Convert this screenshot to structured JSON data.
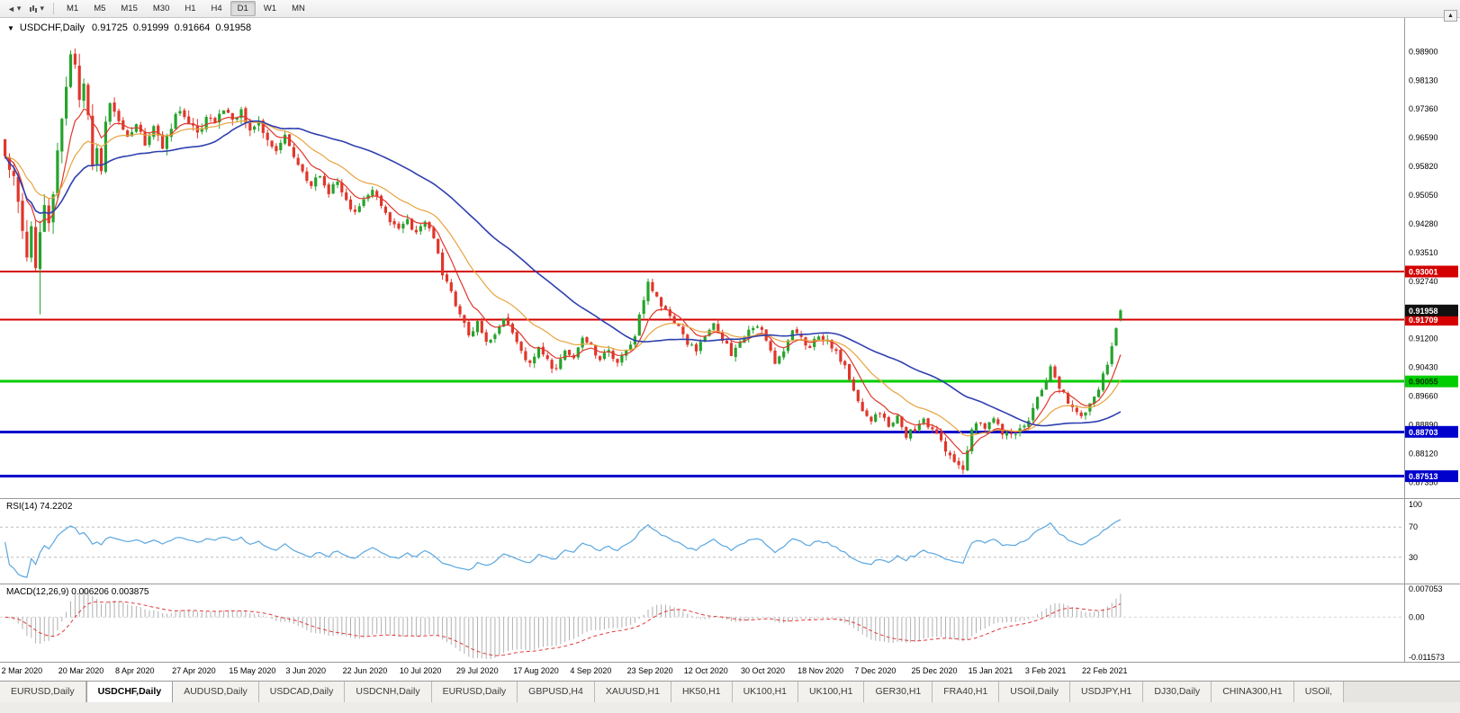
{
  "toolbar": {
    "timeframes": [
      "M1",
      "M5",
      "M15",
      "M30",
      "H1",
      "H4",
      "D1",
      "W1",
      "MN"
    ],
    "active_timeframe": "D1"
  },
  "icons": {
    "caret_down": "▾",
    "collapse": "▼",
    "triangle_up": "▲",
    "left_arrow": "◄"
  },
  "chart": {
    "header": {
      "symbol": "USDCHF,Daily",
      "open": "0.91725",
      "high": "0.91999",
      "low": "0.91664",
      "close": "0.91958"
    },
    "price_axis": {
      "labels": [
        "0.98900",
        "0.98130",
        "0.97360",
        "0.96590",
        "0.95820",
        "0.95050",
        "0.94280",
        "0.93510",
        "0.92740",
        "0.91970",
        "0.91200",
        "0.90430",
        "0.89660",
        "0.88890",
        "0.88120",
        "0.87350"
      ]
    },
    "hlines": [
      {
        "price": 0.93001,
        "label": "0.93001",
        "color": "#d40000",
        "width": 2,
        "label_text": "#ffffff"
      },
      {
        "price": 0.91709,
        "label": "0.91709",
        "color": "#d40000",
        "width": 2,
        "label_text": "#ffffff"
      },
      {
        "price": 0.90055,
        "label": "0.90055",
        "color": "#00ce00",
        "width": 3,
        "label_text": "#003300"
      },
      {
        "price": 0.88703,
        "label": "0.88703",
        "color": "#0000cc",
        "width": 3,
        "label_text": "#ffffff"
      },
      {
        "price": 0.87513,
        "label": "0.87513",
        "color": "#0000cc",
        "width": 3,
        "label_text": "#ffffff"
      }
    ],
    "current_price": {
      "label": "0.91958",
      "value": 0.91958,
      "bg": "#101010",
      "text_color": "#ffffff"
    }
  },
  "chart_data": {
    "type": "candlestick",
    "symbol": "USDCHF",
    "timeframe": "Daily",
    "bars": 256,
    "ylim": [
      0.8695,
      0.9956
    ],
    "label_every": 13,
    "x_labels": [
      "2 Mar 2020",
      "20 Mar 2020",
      "8 Apr 2020",
      "27 Apr 2020",
      "15 May 2020",
      "3 Jun 2020",
      "22 Jun 2020",
      "10 Jul 2020",
      "29 Jul 2020",
      "17 Aug 2020",
      "4 Sep 2020",
      "23 Sep 2020",
      "12 Oct 2020",
      "30 Oct 2020",
      "18 Nov 2020",
      "7 Dec 2020",
      "25 Dec 2020",
      "15 Jan 2021",
      "3 Feb 2021",
      "22 Feb 2021"
    ],
    "close_anchors": [
      [
        0,
        0.962
      ],
      [
        2,
        0.9565
      ],
      [
        4,
        0.94
      ],
      [
        5,
        0.933
      ],
      [
        6,
        0.9425
      ],
      [
        7,
        0.9315
      ],
      [
        8,
        0.941
      ],
      [
        9,
        0.948
      ],
      [
        10,
        0.9435
      ],
      [
        12,
        0.9615
      ],
      [
        13,
        0.97
      ],
      [
        14,
        0.9815
      ],
      [
        15,
        0.9885
      ],
      [
        16,
        0.9845
      ],
      [
        17,
        0.9755
      ],
      [
        18,
        0.98
      ],
      [
        19,
        0.9705
      ],
      [
        20,
        0.9585
      ],
      [
        21,
        0.9625
      ],
      [
        22,
        0.9565
      ],
      [
        23,
        0.9695
      ],
      [
        24,
        0.9755
      ],
      [
        26,
        0.97
      ],
      [
        28,
        0.966
      ],
      [
        30,
        0.9705
      ],
      [
        32,
        0.9645
      ],
      [
        34,
        0.968
      ],
      [
        36,
        0.9635
      ],
      [
        38,
        0.9685
      ],
      [
        40,
        0.974
      ],
      [
        42,
        0.9705
      ],
      [
        44,
        0.9665
      ],
      [
        46,
        0.972
      ],
      [
        48,
        0.97
      ],
      [
        50,
        0.974
      ],
      [
        52,
        0.9705
      ],
      [
        54,
        0.9725
      ],
      [
        56,
        0.9685
      ],
      [
        58,
        0.97
      ],
      [
        60,
        0.9645
      ],
      [
        62,
        0.962
      ],
      [
        64,
        0.966
      ],
      [
        66,
        0.961
      ],
      [
        68,
        0.9565
      ],
      [
        70,
        0.953
      ],
      [
        72,
        0.956
      ],
      [
        74,
        0.9515
      ],
      [
        76,
        0.954
      ],
      [
        78,
        0.9485
      ],
      [
        80,
        0.946
      ],
      [
        82,
        0.95
      ],
      [
        84,
        0.952
      ],
      [
        86,
        0.947
      ],
      [
        88,
        0.944
      ],
      [
        90,
        0.9415
      ],
      [
        92,
        0.944
      ],
      [
        94,
        0.94
      ],
      [
        96,
        0.9435
      ],
      [
        98,
        0.939
      ],
      [
        100,
        0.9295
      ],
      [
        102,
        0.924
      ],
      [
        104,
        0.9185
      ],
      [
        106,
        0.9135
      ],
      [
        108,
        0.916
      ],
      [
        110,
        0.9105
      ],
      [
        112,
        0.9125
      ],
      [
        114,
        0.918
      ],
      [
        116,
        0.913
      ],
      [
        118,
        0.9085
      ],
      [
        120,
        0.905
      ],
      [
        122,
        0.91
      ],
      [
        124,
        0.906
      ],
      [
        126,
        0.9035
      ],
      [
        128,
        0.909
      ],
      [
        130,
        0.907
      ],
      [
        132,
        0.912
      ],
      [
        134,
        0.91
      ],
      [
        136,
        0.906
      ],
      [
        138,
        0.909
      ],
      [
        140,
        0.9055
      ],
      [
        142,
        0.9085
      ],
      [
        144,
        0.913
      ],
      [
        146,
        0.9225
      ],
      [
        147,
        0.927
      ],
      [
        148,
        0.9245
      ],
      [
        150,
        0.921
      ],
      [
        152,
        0.918
      ],
      [
        154,
        0.915
      ],
      [
        156,
        0.911
      ],
      [
        158,
        0.909
      ],
      [
        160,
        0.913
      ],
      [
        162,
        0.916
      ],
      [
        164,
        0.912
      ],
      [
        166,
        0.908
      ],
      [
        168,
        0.911
      ],
      [
        170,
        0.914
      ],
      [
        172,
        0.916
      ],
      [
        174,
        0.912
      ],
      [
        176,
        0.905
      ],
      [
        178,
        0.908
      ],
      [
        180,
        0.914
      ],
      [
        182,
        0.912
      ],
      [
        184,
        0.91
      ],
      [
        186,
        0.913
      ],
      [
        188,
        0.911
      ],
      [
        190,
        0.908
      ],
      [
        192,
        0.905
      ],
      [
        194,
        0.898
      ],
      [
        196,
        0.8925
      ],
      [
        198,
        0.89
      ],
      [
        200,
        0.892
      ],
      [
        202,
        0.889
      ],
      [
        204,
        0.891
      ],
      [
        206,
        0.886
      ],
      [
        208,
        0.888
      ],
      [
        210,
        0.89
      ],
      [
        212,
        0.887
      ],
      [
        214,
        0.885
      ],
      [
        216,
        0.88
      ],
      [
        218,
        0.8775
      ],
      [
        219,
        0.8765
      ],
      [
        220,
        0.882
      ],
      [
        221,
        0.888
      ],
      [
        222,
        0.89
      ],
      [
        224,
        0.888
      ],
      [
        226,
        0.89
      ],
      [
        228,
        0.887
      ],
      [
        230,
        0.886
      ],
      [
        232,
        0.888
      ],
      [
        234,
        0.8895
      ],
      [
        236,
        0.896
      ],
      [
        238,
        0.9
      ],
      [
        239,
        0.904
      ],
      [
        240,
        0.901
      ],
      [
        242,
        0.897
      ],
      [
        244,
        0.893
      ],
      [
        246,
        0.891
      ],
      [
        248,
        0.894
      ],
      [
        250,
        0.899
      ],
      [
        252,
        0.905
      ],
      [
        253,
        0.9095
      ],
      [
        254,
        0.9145
      ],
      [
        255,
        0.9196
      ]
    ],
    "extremes": [
      {
        "index": 8,
        "low": 0.9185
      },
      {
        "index": 15,
        "high": 0.989
      },
      {
        "index": 219,
        "low": 0.8757
      }
    ],
    "last_ohlc": {
      "open": 0.91725,
      "high": 0.91999,
      "low": 0.91664,
      "close": 0.91958
    },
    "moving_averages": [
      {
        "type": "ema",
        "period": 8,
        "color": "#e0362b",
        "width": 1.2
      },
      {
        "type": "ema",
        "period": 20,
        "color": "#e8a33e",
        "width": 1.2
      },
      {
        "type": "sma",
        "period": 45,
        "color": "#2e3fae",
        "width": 1.6
      }
    ],
    "rsi": {
      "label": "RSI(14) 74.2202",
      "period": 14,
      "levels": [
        100,
        70,
        30
      ],
      "range": [
        0,
        100
      ]
    },
    "macd": {
      "label": "MACD(12,26,9) 0.006206 0.003875",
      "fast": 12,
      "slow": 26,
      "signal": 9,
      "axis_labels": [
        "0.007053",
        "0.00",
        "-0.011573"
      ]
    }
  },
  "colors": {
    "candle_up": "#26a32c",
    "candle_down": "#e0362b",
    "rsi_line": "#5aa7e0",
    "macd_hist": "#b0b0b0",
    "macd_signal": "#e03a3a"
  },
  "window": {
    "bottom_tabs": [
      "EURUSD,Daily",
      "USDCHF,Daily",
      "AUDUSD,Daily",
      "USDCAD,Daily",
      "USDCNH,Daily",
      "EURUSD,Daily",
      "GBPUSD,H4",
      "XAUUSD,H1",
      "HK50,H1",
      "UK100,H1",
      "UK100,H1",
      "GER30,H1",
      "FRA40,H1",
      "USOil,Daily",
      "USDJPY,H1",
      "DJ30,Daily",
      "CHINA300,H1",
      "USOil,"
    ],
    "active_tab_index": 1
  }
}
